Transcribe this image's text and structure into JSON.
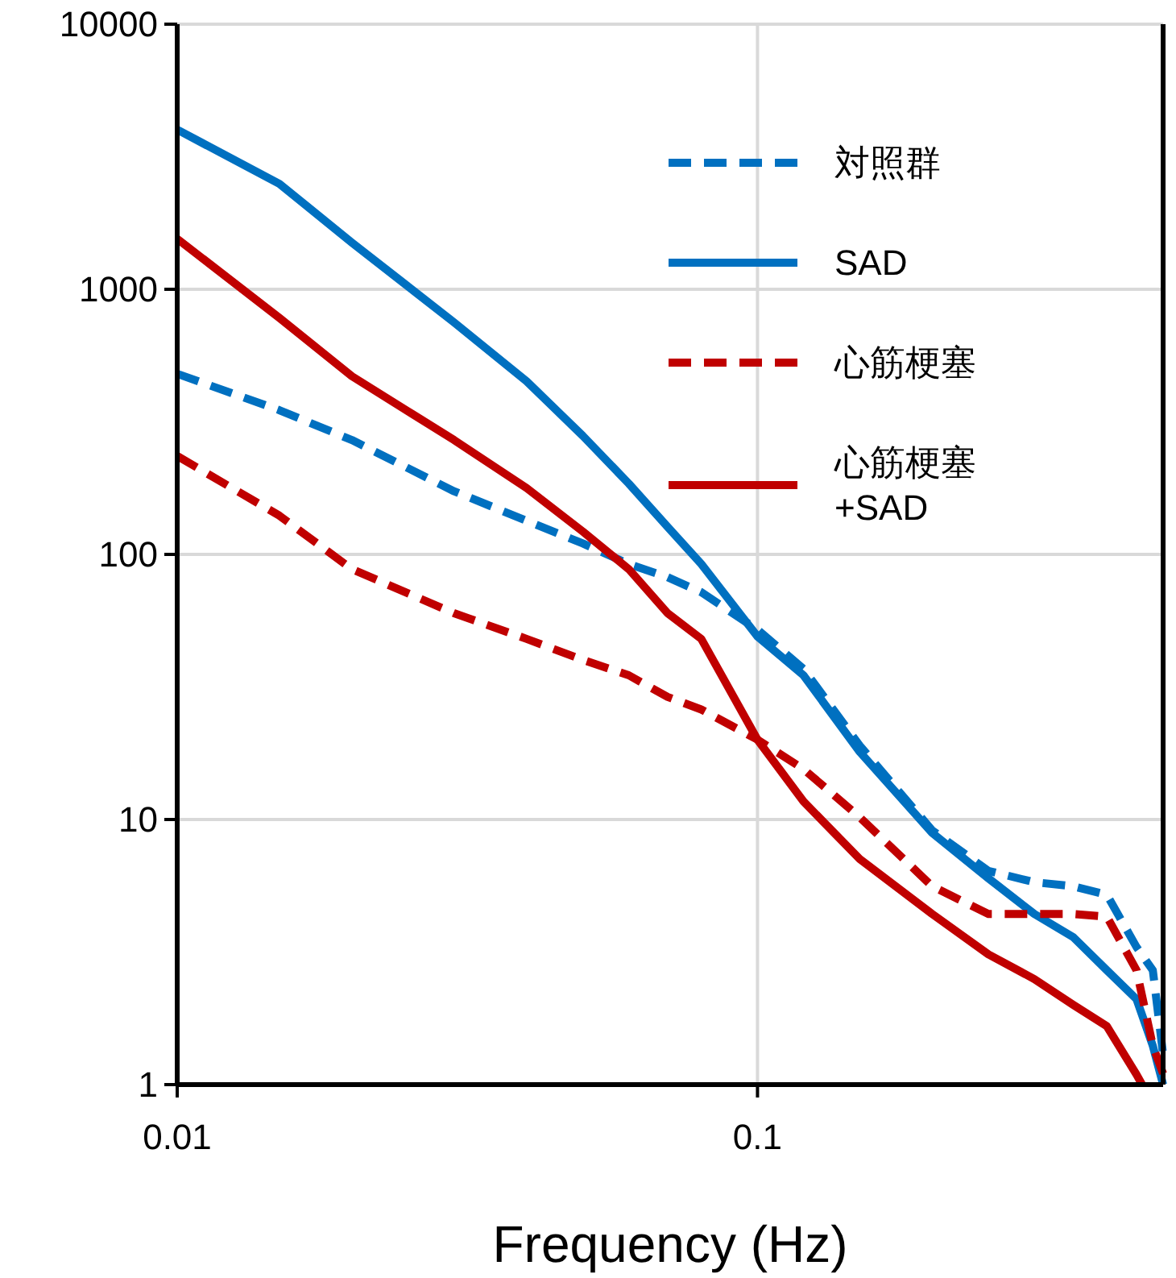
{
  "chart_data": {
    "type": "line",
    "xlabel": "Frequency (Hz)",
    "log": "xy",
    "xlim": [
      0.01,
      0.5
    ],
    "xticks": [
      0.01,
      0.1
    ],
    "ylim": [
      1,
      10000
    ],
    "yticks": [
      1,
      10,
      100,
      1000,
      10000
    ],
    "grid": true,
    "legend": "top right",
    "x": [
      0.01,
      0.015,
      0.02,
      0.03,
      0.04,
      0.05,
      0.06,
      0.07,
      0.08,
      0.1,
      0.12,
      0.15,
      0.2,
      0.25,
      0.3,
      0.35,
      0.4,
      0.45,
      0.48,
      0.5
    ],
    "series": [
      {
        "name": "対照群",
        "color": "#0070c0",
        "line_style": "dashed",
        "values": [
          480,
          350,
          270,
          173,
          134,
          110,
          92,
          82,
          72,
          52,
          37,
          19,
          9.1,
          6.4,
          5.8,
          5.6,
          5.2,
          3.3,
          2.7,
          1.3
        ]
      },
      {
        "name": "SAD",
        "color": "#0070c0",
        "line_style": "solid",
        "values": [
          4000,
          2500,
          1500,
          750,
          450,
          280,
          185,
          127,
          92,
          49,
          35,
          18,
          8.9,
          6,
          4.4,
          3.6,
          2.7,
          2.1,
          1.4,
          1
        ]
      },
      {
        "name": "心筋梗塞",
        "color": "#c00000",
        "line_style": "dashed",
        "values": [
          235,
          140,
          88,
          60,
          48,
          40,
          35,
          29,
          26,
          20,
          15.5,
          10.2,
          5.6,
          4.4,
          4.4,
          4.4,
          4.3,
          2.7,
          1.4,
          1.1
        ]
      },
      {
        "name": "心筋梗塞\n+SAD",
        "color": "#c00000",
        "line_style": "solid",
        "x": [
          0.01,
          0.015,
          0.02,
          0.03,
          0.04,
          0.05,
          0.06,
          0.07,
          0.08,
          0.1,
          0.12,
          0.15,
          0.2,
          0.25,
          0.3,
          0.35,
          0.4,
          0.45,
          0.46
        ],
        "values": [
          1550,
          780,
          470,
          270,
          178,
          122,
          88,
          60,
          48,
          20,
          11.7,
          7.1,
          4.4,
          3.1,
          2.5,
          2,
          1.66,
          1.09,
          1
        ]
      }
    ]
  }
}
